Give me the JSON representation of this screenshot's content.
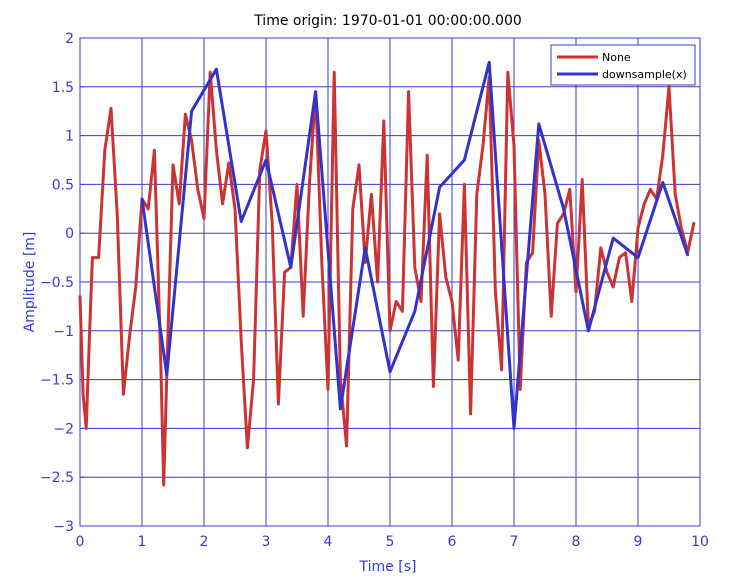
{
  "chart_data": {
    "type": "line",
    "title": "Time origin: 1970-01-01 00:00:00.000",
    "xlabel": "Time  [s]",
    "ylabel": "Amplitude  [m]",
    "xlim": [
      0,
      10
    ],
    "ylim": [
      -3,
      2
    ],
    "xticks": [
      0,
      1,
      2,
      3,
      4,
      5,
      6,
      7,
      8,
      9,
      10
    ],
    "yticks": [
      -3,
      -2.5,
      -2,
      -1.5,
      -1,
      -0.5,
      0,
      0.5,
      1,
      1.5,
      2
    ],
    "xtick_labels": [
      "0",
      "1",
      "2",
      "3",
      "4",
      "5",
      "6",
      "7",
      "8",
      "9",
      "10"
    ],
    "ytick_labels": [
      "−3",
      "−2.5",
      "−2",
      "−1.5",
      "−1",
      "−0.5",
      "0",
      "0.5",
      "1",
      "1.5",
      "2"
    ],
    "grid": true,
    "legend_placement": "top-right",
    "series": [
      {
        "name": "None",
        "color": "#cc3333",
        "x": [
          0,
          0.05,
          0.1,
          0.15,
          0.2,
          0.3,
          0.4,
          0.5,
          0.6,
          0.7,
          0.8,
          0.9,
          1.0,
          1.1,
          1.2,
          1.3,
          1.35,
          1.4,
          1.5,
          1.6,
          1.7,
          1.8,
          1.9,
          2.0,
          2.1,
          2.2,
          2.3,
          2.4,
          2.5,
          2.6,
          2.7,
          2.8,
          2.9,
          3.0,
          3.1,
          3.2,
          3.3,
          3.4,
          3.5,
          3.6,
          3.7,
          3.8,
          3.9,
          4.0,
          4.1,
          4.2,
          4.3,
          4.4,
          4.5,
          4.6,
          4.7,
          4.8,
          4.9,
          5.0,
          5.1,
          5.2,
          5.3,
          5.4,
          5.5,
          5.6,
          5.7,
          5.8,
          5.9,
          6.0,
          6.1,
          6.2,
          6.3,
          6.4,
          6.5,
          6.6,
          6.7,
          6.8,
          6.9,
          7.0,
          7.1,
          7.2,
          7.3,
          7.4,
          7.5,
          7.6,
          7.7,
          7.8,
          7.9,
          8.0,
          8.1,
          8.2,
          8.3,
          8.4,
          8.5,
          8.6,
          8.7,
          8.8,
          8.9,
          9.0,
          9.1,
          9.2,
          9.3,
          9.4,
          9.5,
          9.6,
          9.7,
          9.8,
          9.9
        ],
        "y": [
          -0.65,
          -1.65,
          -2.0,
          -1.1,
          -0.25,
          -0.25,
          0.85,
          1.28,
          0.2,
          -1.65,
          -1.05,
          -0.55,
          0.35,
          0.25,
          0.85,
          -1.25,
          -2.58,
          -1.45,
          0.7,
          0.3,
          1.22,
          0.95,
          0.45,
          0.15,
          1.65,
          0.85,
          0.3,
          0.72,
          0.25,
          -1.1,
          -2.2,
          -1.5,
          0.65,
          1.05,
          0.1,
          -1.75,
          -0.4,
          -0.35,
          0.5,
          -0.85,
          0.5,
          1.45,
          -0.3,
          -1.6,
          1.65,
          -1.5,
          -2.18,
          0.25,
          0.7,
          -0.3,
          0.4,
          -0.5,
          1.15,
          -1.0,
          -0.7,
          -0.8,
          1.45,
          -0.35,
          -0.7,
          0.8,
          -1.57,
          0.2,
          -0.45,
          -0.7,
          -1.3,
          0.5,
          -1.85,
          0.4,
          0.9,
          1.6,
          -0.6,
          -1.4,
          1.65,
          0.9,
          -1.6,
          -0.3,
          -0.2,
          0.95,
          0.4,
          -0.85,
          0.1,
          0.2,
          0.45,
          -0.6,
          0.55,
          -0.95,
          -0.8,
          -0.15,
          -0.4,
          -0.55,
          -0.25,
          -0.2,
          -0.7,
          0.05,
          0.3,
          0.45,
          0.35,
          0.8,
          1.5,
          0.4,
          0.05,
          -0.2,
          0.1
        ]
      },
      {
        "name": "downsample(x)",
        "color": "#3333cc",
        "x": [
          1.0,
          1.4,
          1.8,
          2.2,
          2.6,
          3.0,
          3.4,
          3.8,
          4.2,
          4.6,
          5.0,
          5.4,
          5.8,
          6.2,
          6.6,
          7.0,
          7.4,
          7.8,
          8.2,
          8.6,
          9.0,
          9.4,
          9.8
        ],
        "y": [
          0.35,
          -1.45,
          1.25,
          1.68,
          0.12,
          0.75,
          -0.35,
          1.45,
          -1.8,
          -0.15,
          -1.42,
          -0.8,
          0.47,
          0.75,
          1.75,
          -2.0,
          1.12,
          0.25,
          -1.0,
          -0.05,
          -0.25,
          0.52,
          -0.22
        ]
      }
    ]
  }
}
